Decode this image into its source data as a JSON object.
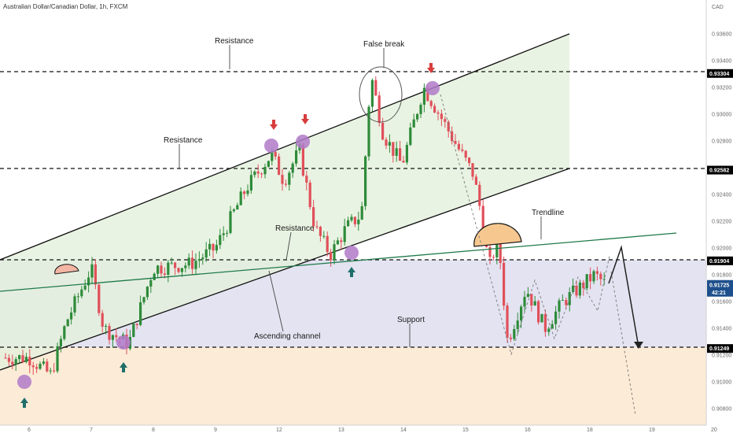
{
  "header": {
    "title": "Australian Dollar/Canadian Dollar, 1h, FXCM",
    "currency": "CAD",
    "countdown": "42:21"
  },
  "colors": {
    "up": "#2e8b3a",
    "down": "#e0505a",
    "channel_fill": "#e4f0dc",
    "support_zone_fill": "#e3e3f1",
    "lower_fill": "#fcebd6",
    "trendline": "#1f7a4a",
    "marker_circle": "#b07ac8",
    "up_arrow": "#1f6e6a",
    "down_arrow": "#d83c3c",
    "price_tag": "#000000",
    "current_tag": "#1d4f8c"
  },
  "annotations": {
    "resistance_top": "Resistance",
    "resistance_mid": "Resistance",
    "resistance_low": "Resistance",
    "false_break": "False break",
    "trendline": "Trendline",
    "ascending_channel": "Ascending channel",
    "support": "Support"
  },
  "chart_data": {
    "type": "candlestick",
    "symbol": "AUDCAD",
    "timeframe": "1h",
    "y_axis": {
      "ticks": [
        "0.93600",
        "0.93400",
        "0.93200",
        "0.93000",
        "0.92800",
        "0.92600",
        "0.92400",
        "0.92200",
        "0.92000",
        "0.91800",
        "0.91600",
        "0.91400",
        "0.91200",
        "0.91000",
        "0.90800"
      ],
      "range": [
        0.9072,
        0.9372
      ]
    },
    "x_axis": {
      "ticks": [
        "6",
        "7",
        "8",
        "9",
        "12",
        "13",
        "14",
        "15",
        "16",
        "18",
        "19",
        "20"
      ]
    },
    "levels": [
      {
        "label": "0.93304",
        "price": 0.93304
      },
      {
        "label": "0.92582",
        "price": 0.92582
      },
      {
        "label": "0.91904",
        "price": 0.91904
      },
      {
        "label": "0.91249",
        "price": 0.91249
      }
    ],
    "current_price": {
      "label": "0.91725",
      "price": 0.91725
    },
    "support_zone": [
      0.91249,
      0.91904
    ],
    "key_points": [
      {
        "x_index": 0.0,
        "price": 0.9118
      },
      {
        "x_index": 0.35,
        "price": 0.9105
      },
      {
        "x_index": 0.6,
        "price": 0.9145
      },
      {
        "x_index": 1.0,
        "price": 0.9185
      },
      {
        "x_index": 1.2,
        "price": 0.914
      },
      {
        "x_index": 1.6,
        "price": 0.9128
      },
      {
        "x_index": 2.0,
        "price": 0.9185
      },
      {
        "x_index": 2.6,
        "price": 0.9188
      },
      {
        "x_index": 3.0,
        "price": 0.92
      },
      {
        "x_index": 3.5,
        "price": 0.9245
      },
      {
        "x_index": 3.9,
        "price": 0.927
      },
      {
        "x_index": 4.1,
        "price": 0.925
      },
      {
        "x_index": 4.35,
        "price": 0.9273
      },
      {
        "x_index": 4.6,
        "price": 0.9215
      },
      {
        "x_index": 4.85,
        "price": 0.9195
      },
      {
        "x_index": 5.1,
        "price": 0.9215
      },
      {
        "x_index": 5.35,
        "price": 0.9225
      },
      {
        "x_index": 5.5,
        "price": 0.933
      },
      {
        "x_index": 5.7,
        "price": 0.9285
      },
      {
        "x_index": 6.0,
        "price": 0.9262
      },
      {
        "x_index": 6.35,
        "price": 0.932
      },
      {
        "x_index": 6.6,
        "price": 0.93
      },
      {
        "x_index": 6.9,
        "price": 0.9275
      },
      {
        "x_index": 7.15,
        "price": 0.9255
      },
      {
        "x_index": 7.3,
        "price": 0.922
      },
      {
        "x_index": 7.4,
        "price": 0.9185
      },
      {
        "x_index": 7.55,
        "price": 0.9208
      },
      {
        "x_index": 7.7,
        "price": 0.913
      },
      {
        "x_index": 8.0,
        "price": 0.917
      },
      {
        "x_index": 8.3,
        "price": 0.914
      },
      {
        "x_index": 8.6,
        "price": 0.916
      },
      {
        "x_index": 9.1,
        "price": 0.918
      },
      {
        "x_index": 9.3,
        "price": 0.9172
      }
    ]
  }
}
